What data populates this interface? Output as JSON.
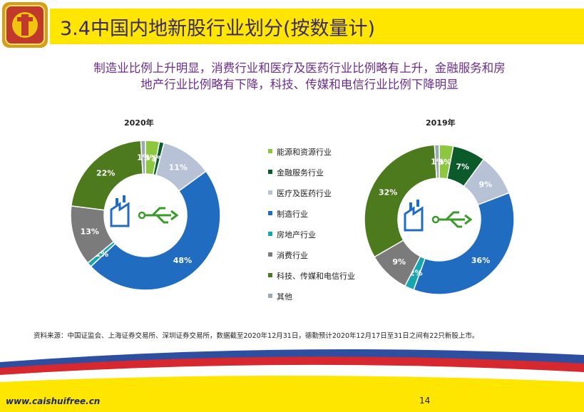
{
  "header": {
    "title": "3.4中国内地新股行业划分(按数量计)",
    "subtitle_line1": "制造业比例上升明显，消费行业和医疗及医药行业比例略有上升，金融服务和房",
    "subtitle_line2": "地产行业比例略有下降，科技、传媒和电信行业比例下降明显"
  },
  "chart_data": [
    {
      "type": "pie",
      "title": "2020年",
      "categories": [
        "能源和资源行业",
        "金融服务行业",
        "医疗及医药行业",
        "制造行业",
        "房地产行业",
        "消费行业",
        "科技、传媒和电信行业",
        "其他"
      ],
      "values": [
        3,
        1,
        11,
        48,
        1,
        13,
        22,
        1
      ],
      "labels": [
        "3%",
        "1%",
        "11%",
        "48%",
        "1%",
        "13%",
        "22%",
        "1%"
      ],
      "colors": [
        "#8dc63f",
        "#0a5a2a",
        "#b7c2d6",
        "#1f6cc0",
        "#17a5b0",
        "#7b7b7b",
        "#4e7a1e",
        "#9aaab4"
      ]
    },
    {
      "type": "pie",
      "title": "2019年",
      "categories": [
        "能源和资源行业",
        "金融服务行业",
        "医疗及医药行业",
        "制造行业",
        "房地产行业",
        "消费行业",
        "科技、传媒和电信行业",
        "其他"
      ],
      "values": [
        3,
        7,
        9,
        36,
        2,
        9,
        32,
        1
      ],
      "labels": [
        "3%",
        "7%",
        "9%",
        "36%",
        "2%",
        "9%",
        "32%",
        "1%"
      ],
      "colors": [
        "#8dc63f",
        "#0a5a2a",
        "#b7c2d6",
        "#1f6cc0",
        "#17a5b0",
        "#7b7b7b",
        "#4e7a1e",
        "#9aaab4"
      ]
    }
  ],
  "legend": {
    "items": [
      "能源和资源行业",
      "金融服务行业",
      "医疗及医药行业",
      "制造行业",
      "房地产行业",
      "消费行业",
      "科技、传媒和电信行业",
      "其他"
    ]
  },
  "source": "资料来源：中国证监会、上海证券交易所、深圳证券交易所，数据截至2020年12月31日，德勤预计2020年12月17日至31日之间有22只新股上市。",
  "footer": {
    "url": "www.caishuifree.cn",
    "page": "14"
  }
}
